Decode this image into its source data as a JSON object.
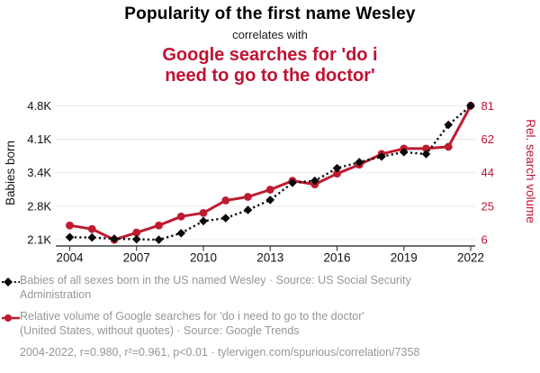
{
  "header": {
    "title": "Popularity of the first name Wesley",
    "connector": "correlates with",
    "title2_lines": [
      "Google searches for 'do i",
      "need to go to the doctor'"
    ]
  },
  "chart_data": {
    "type": "line",
    "x": [
      2004,
      2005,
      2006,
      2007,
      2008,
      2009,
      2010,
      2011,
      2012,
      2013,
      2014,
      2015,
      2016,
      2017,
      2018,
      2019,
      2020,
      2021,
      2022
    ],
    "x_ticks": [
      "2004",
      "2007",
      "2010",
      "2013",
      "2016",
      "2019",
      "2022"
    ],
    "series": [
      {
        "name": "Babies of all sexes born in the US named Wesley",
        "axis": "left",
        "color": "#0a0a0a",
        "marker": "diamond",
        "line_style": "dotted",
        "values": [
          2190,
          2185,
          2160,
          2150,
          2140,
          2270,
          2510,
          2570,
          2730,
          2930,
          3270,
          3310,
          3560,
          3680,
          3790,
          3880,
          3840,
          4420,
          4800
        ]
      },
      {
        "name": "Relative volume of Google searches for 'do i need to go to the doctor'",
        "axis": "right",
        "color": "#be1b30",
        "marker": "circle",
        "line_style": "solid",
        "values": [
          14,
          12,
          6,
          10,
          14,
          19,
          21,
          28,
          30,
          34,
          39,
          37,
          43,
          48,
          54,
          57,
          57,
          58,
          81
        ]
      }
    ],
    "left_axis": {
      "label": "Babies born",
      "min": 2140,
      "max": 4800,
      "tick_labels": [
        "4.8K",
        "4.1K",
        "3.4K",
        "2.8K",
        "2.1K"
      ],
      "tick_values": [
        4800,
        4135,
        3470,
        2805,
        2140
      ]
    },
    "right_axis": {
      "label": "Rel. search volume",
      "min": 6,
      "max": 81,
      "tick_labels": [
        "81",
        "62",
        "44",
        "25",
        "6"
      ],
      "tick_values": [
        81,
        62.25,
        43.5,
        24.75,
        6
      ]
    },
    "grid": true,
    "legend_position": "bottom"
  },
  "legend": {
    "items": [
      {
        "lines": [
          "Babies of all sexes born in the US named Wesley · Source: US Social Security",
          "Administration"
        ]
      },
      {
        "lines": [
          "Relative volume of Google searches for 'do i need to go to the doctor'",
          "(United States, without quotes) · Source: Google Trends"
        ]
      }
    ],
    "footnote": "2004-2022, r=0.980, r²=0.961, p<0.01 · tylervigen.com/spurious/correlation/7358"
  },
  "style": {
    "accent_red": "#c01232",
    "series_red": "#be1b30",
    "series_black": "#0a0a0a",
    "legend_gray": "#979797",
    "gridline": "#e9e9e9",
    "axis_line": "#404040"
  }
}
